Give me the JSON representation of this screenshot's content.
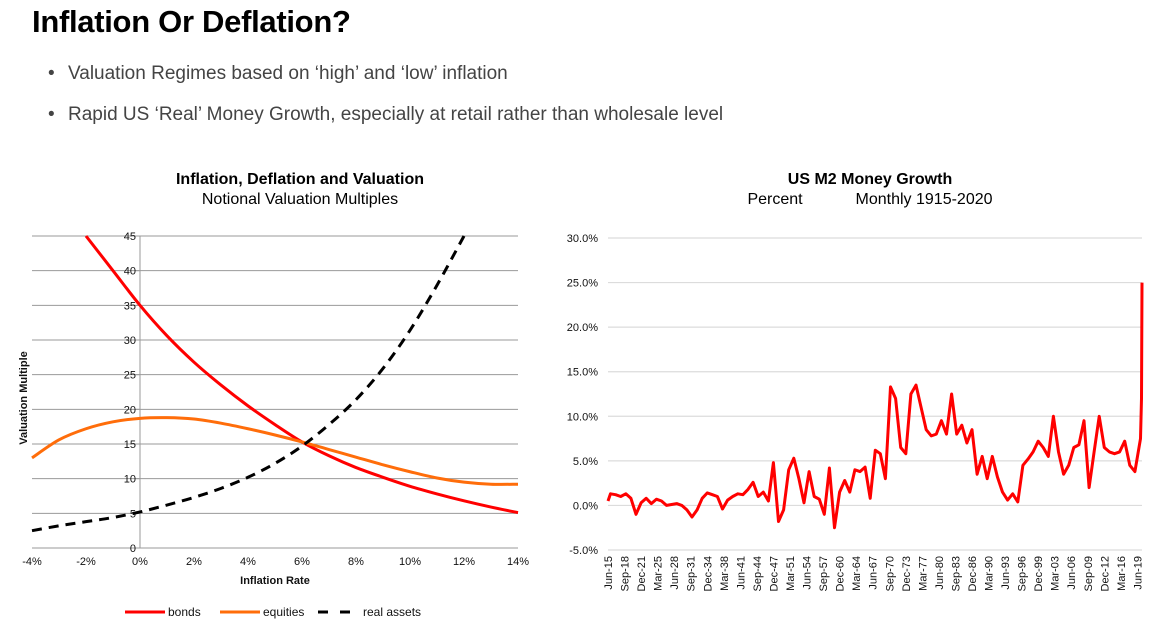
{
  "slide": {
    "title": "Inflation Or Deflation?",
    "bullets": [
      "Valuation Regimes based on ‘high’ and ‘low’ inflation",
      "Rapid US ‘Real’ Money Growth, especially at retail rather than wholesale level"
    ],
    "bullet_glyph": "•"
  },
  "colors": {
    "bonds": "#ff0000",
    "equities": "#ff6d0a",
    "real_assets": "#000000",
    "m2": "#ff0000",
    "grid_left": "#9a9a9a",
    "grid_right": "#dcdcdc"
  },
  "chart_data": [
    {
      "type": "line",
      "title": "Inflation, Deflation and Valuation",
      "subtitle": "Notional Valuation Multiples",
      "xlabel": "Inflation Rate",
      "ylabel": "Valuation Multiple",
      "xlim": [
        -4,
        14
      ],
      "ylim": [
        0,
        45
      ],
      "x_ticks": [
        -4,
        -2,
        0,
        2,
        4,
        6,
        8,
        10,
        12,
        14
      ],
      "x_tick_labels": [
        "-4%",
        "-2%",
        "0%",
        "2%",
        "4%",
        "6%",
        "8%",
        "10%",
        "12%",
        "14%"
      ],
      "y_ticks": [
        0,
        5,
        10,
        15,
        20,
        25,
        30,
        35,
        40,
        45
      ],
      "y_tick_labels": [
        "0",
        "5",
        "10",
        "15",
        "20",
        "25",
        "30",
        "35",
        "40",
        "45"
      ],
      "grid": true,
      "legend_position": "bottom",
      "x": [
        -4,
        -3,
        -2,
        -1,
        0,
        1,
        2,
        3,
        4,
        5,
        6,
        7,
        8,
        9,
        10,
        11,
        12,
        13,
        14
      ],
      "series": [
        {
          "name": "bonds",
          "style": "solid",
          "values": [
            null,
            null,
            45,
            40,
            35,
            30.6,
            26.8,
            23.5,
            20.5,
            17.8,
            15.3,
            13.3,
            11.6,
            10.2,
            8.9,
            7.8,
            6.8,
            5.9,
            5.1
          ]
        },
        {
          "name": "equities",
          "style": "solid",
          "values": [
            13.0,
            15.6,
            17.2,
            18.2,
            18.7,
            18.8,
            18.6,
            18.0,
            17.2,
            16.3,
            15.3,
            14.2,
            13.1,
            12.0,
            11.0,
            10.1,
            9.5,
            9.2,
            9.2
          ]
        },
        {
          "name": "real assets",
          "style": "dashed",
          "values": [
            2.5,
            3.2,
            3.8,
            4.4,
            5.2,
            6.2,
            7.3,
            8.6,
            10.2,
            12.2,
            14.7,
            17.8,
            21.4,
            25.9,
            31.4,
            37.9,
            45,
            null,
            null
          ]
        }
      ]
    },
    {
      "type": "line",
      "title": "US M2 Money Growth",
      "subtitle_left": "Percent",
      "subtitle_right": "Monthly 1915-2020",
      "xlabel": "",
      "ylabel": "",
      "ylim": [
        -5,
        30
      ],
      "y_ticks": [
        -5,
        0,
        5,
        10,
        15,
        20,
        25,
        30
      ],
      "y_tick_labels": [
        "-5.0%",
        "0.0%",
        "5.0%",
        "10.0%",
        "15.0%",
        "20.0%",
        "25.0%",
        "30.0%"
      ],
      "grid": true,
      "x_tick_labels": [
        "Jun-15",
        "Sep-18",
        "Dec-21",
        "Mar-25",
        "Jun-28",
        "Sep-31",
        "Dec-34",
        "Mar-38",
        "Jun-41",
        "Sep-44",
        "Dec-47",
        "Mar-51",
        "Jun-54",
        "Sep-57",
        "Dec-60",
        "Mar-64",
        "Jun-67",
        "Sep-70",
        "Dec-73",
        "Mar-77",
        "Jun-80",
        "Sep-83",
        "Dec-86",
        "Mar-90",
        "Jun-93",
        "Sep-96",
        "Dec-99",
        "Mar-03",
        "Jun-06",
        "Sep-09",
        "Dec-12",
        "Mar-16",
        "Jun-19"
      ],
      "x_start": 1915.5,
      "x_end": 2020.4,
      "x": [
        1915.5,
        1916,
        1917,
        1918,
        1919,
        1920,
        1921,
        1922,
        1923,
        1924,
        1925,
        1926,
        1927,
        1928,
        1929,
        1930,
        1931,
        1932,
        1933,
        1934,
        1935,
        1936,
        1937,
        1938,
        1939,
        1940,
        1941,
        1942,
        1943,
        1944,
        1945,
        1946,
        1947,
        1948,
        1949,
        1950,
        1951,
        1952,
        1953,
        1954,
        1955,
        1956,
        1957,
        1958,
        1959,
        1960,
        1961,
        1962,
        1963,
        1964,
        1965,
        1966,
        1967,
        1968,
        1969,
        1970,
        1971,
        1972,
        1973,
        1974,
        1975,
        1976,
        1977,
        1978,
        1979,
        1980,
        1981,
        1982,
        1983,
        1984,
        1985,
        1986,
        1987,
        1988,
        1989,
        1990,
        1991,
        1992,
        1993,
        1994,
        1995,
        1996,
        1997,
        1998,
        1999,
        2000,
        2001,
        2002,
        2003,
        2004,
        2005,
        2006,
        2007,
        2008,
        2009,
        2010,
        2011,
        2012,
        2013,
        2014,
        2015,
        2016,
        2017,
        2018,
        2019,
        2020.1,
        2020.3,
        2020.4
      ],
      "series": [
        {
          "name": "US M2 growth",
          "values": [
            0.5,
            1.3,
            1.2,
            1.0,
            1.3,
            0.8,
            -1.0,
            0.3,
            0.8,
            0.2,
            0.7,
            0.5,
            0.0,
            0.1,
            0.2,
            0.0,
            -0.5,
            -1.3,
            -0.5,
            0.8,
            1.4,
            1.2,
            1.0,
            -0.4,
            0.6,
            1.0,
            1.3,
            1.2,
            1.8,
            2.6,
            1.0,
            1.5,
            0.5,
            4.8,
            -1.8,
            -0.5,
            4.0,
            5.3,
            3.0,
            0.3,
            3.8,
            1.0,
            0.7,
            -1.0,
            4.2,
            -2.5,
            1.5,
            2.8,
            1.5,
            4.0,
            3.8,
            4.3,
            0.8,
            6.2,
            5.8,
            3.0,
            13.3,
            12.0,
            6.5,
            5.8,
            12.5,
            13.5,
            11.0,
            8.5,
            7.8,
            8.0,
            9.5,
            8.0,
            12.5,
            8.0,
            9.0,
            7.0,
            8.5,
            3.5,
            5.5,
            3.0,
            5.5,
            3.2,
            1.5,
            0.6,
            1.3,
            0.4,
            4.5,
            5.2,
            6.0,
            7.2,
            6.5,
            5.5,
            10.0,
            6.0,
            3.5,
            4.5,
            6.5,
            6.8,
            9.5,
            2.0,
            6.0,
            10.0,
            6.5,
            6.0,
            5.8,
            6.0,
            7.2,
            4.5,
            3.8,
            7.5,
            12.0,
            25.0
          ]
        }
      ]
    }
  ]
}
